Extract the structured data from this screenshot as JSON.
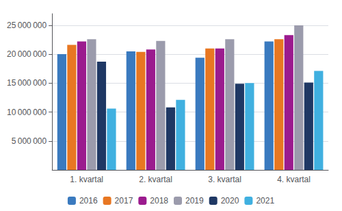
{
  "chart_data": {
    "type": "bar",
    "categories": [
      "1. kvartal",
      "2. kvartal",
      "3. kvartal",
      "4. kvartal"
    ],
    "series": [
      {
        "name": "2016",
        "color": "#3a7abf",
        "values": [
          20000000,
          20500000,
          19400000,
          22200000
        ]
      },
      {
        "name": "2017",
        "color": "#e87722",
        "values": [
          21600000,
          20400000,
          21000000,
          22600000
        ]
      },
      {
        "name": "2018",
        "color": "#9b1b8e",
        "values": [
          22200000,
          20800000,
          21000000,
          23300000
        ]
      },
      {
        "name": "2019",
        "color": "#9b9bac",
        "values": [
          22600000,
          22300000,
          22600000,
          25000000
        ]
      },
      {
        "name": "2020",
        "color": "#1f3864",
        "values": [
          18700000,
          10800000,
          14900000,
          15100000
        ]
      },
      {
        "name": "2021",
        "color": "#40b0e0",
        "values": [
          10600000,
          12100000,
          15000000,
          17100000
        ]
      }
    ],
    "ylim": [
      0,
      27000000
    ],
    "yticks": [
      {
        "value": 5000000,
        "label": "5 000 000"
      },
      {
        "value": 10000000,
        "label": "10 000 000"
      },
      {
        "value": 15000000,
        "label": "15 000 000"
      },
      {
        "value": 20000000,
        "label": "20 000 000"
      },
      {
        "value": 25000000,
        "label": "25 000 000"
      }
    ],
    "grid": true,
    "legend": "bottom"
  }
}
